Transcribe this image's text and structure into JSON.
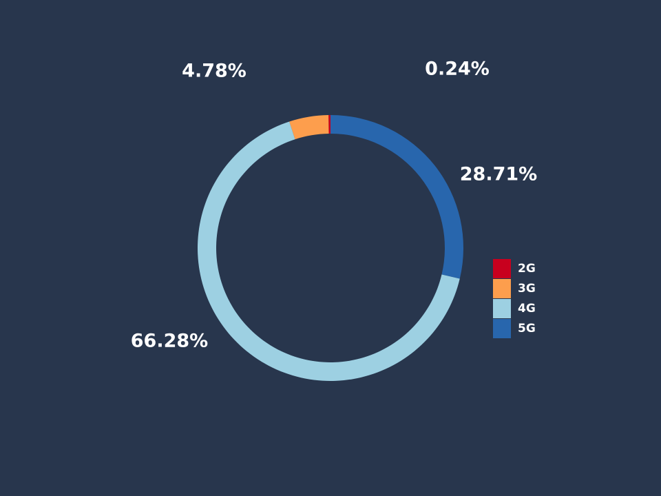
{
  "chart_data": {
    "type": "pie",
    "title": "",
    "categories": [
      "2G",
      "3G",
      "4G",
      "5G"
    ],
    "values": [
      0.24,
      4.78,
      66.28,
      28.71
    ],
    "labels": [
      "0.24%",
      "4.78%",
      "66.28%",
      "28.71%"
    ],
    "colors": [
      "#c8001e",
      "#fd9e4d",
      "#9dd0e2",
      "#2866ad"
    ],
    "donut": true,
    "legend_position": "right"
  },
  "legend": {
    "items": [
      {
        "label": "2G",
        "color": "#c8001e"
      },
      {
        "label": "3G",
        "color": "#fd9e4d"
      },
      {
        "label": "4G",
        "color": "#9dd0e2"
      },
      {
        "label": "5G",
        "color": "#2866ad"
      }
    ]
  },
  "colors": {
    "background": "#28364d",
    "text": "#ffffff"
  }
}
